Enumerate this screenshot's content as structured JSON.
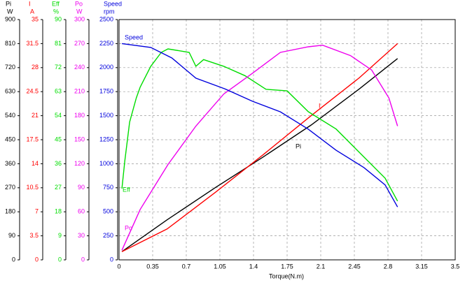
{
  "chart_data": {
    "type": "line",
    "x_label": "Torque(N.m)",
    "xlim": [
      0,
      3.5
    ],
    "xticks": [
      0,
      0.35,
      0.7,
      1.05,
      1.4,
      1.75,
      2.1,
      2.45,
      2.8,
      3.15,
      3.5
    ],
    "grid": true,
    "series": [
      {
        "name": "Pi",
        "unit": "W",
        "color": "#000000",
        "ylim": [
          0,
          900
        ],
        "yticks": [
          0,
          90,
          180,
          270,
          360,
          450,
          540,
          630,
          720,
          810,
          900
        ],
        "x": [
          0.03,
          0.5,
          1.0,
          1.5,
          2.0,
          2.5,
          2.9
        ],
        "values": [
          31,
          150,
          270,
          385,
          505,
          640,
          754
        ]
      },
      {
        "name": "I",
        "unit": "A",
        "color": "#ff0000",
        "ylim": [
          0,
          35
        ],
        "yticks": [
          0,
          3.5,
          7,
          10.5,
          14,
          17.5,
          21,
          24.5,
          28,
          31.5,
          35
        ],
        "x": [
          0.03,
          0.5,
          1.0,
          1.5,
          2.0,
          2.5,
          2.9
        ],
        "values": [
          1.2,
          4.5,
          9.8,
          15.3,
          21,
          26.5,
          31.5
        ]
      },
      {
        "name": "Eff",
        "unit": "%",
        "color": "#00dd00",
        "ylim": [
          0,
          90
        ],
        "yticks": [
          0,
          9,
          18,
          27,
          36,
          45,
          54,
          63,
          72,
          81,
          90
        ],
        "x": [
          0.03,
          0.06,
          0.11,
          0.18,
          0.22,
          0.33,
          0.44,
          0.51,
          0.73,
          0.8,
          0.88,
          1.09,
          1.31,
          1.53,
          1.75,
          1.97,
          2.26,
          2.55,
          2.77,
          2.9
        ],
        "values": [
          26.7,
          37,
          51.6,
          60.7,
          64.7,
          72.5,
          77.7,
          79,
          77.7,
          72.5,
          75,
          72.5,
          69,
          63.9,
          63.3,
          55.5,
          49,
          38.5,
          30.6,
          22
        ]
      },
      {
        "name": "Po",
        "unit": "W",
        "color": "#ee00ee",
        "ylim": [
          0,
          300
        ],
        "yticks": [
          0,
          30,
          60,
          90,
          120,
          150,
          180,
          210,
          240,
          270,
          300
        ],
        "x": [
          0.03,
          0.22,
          0.51,
          0.8,
          1.09,
          1.39,
          1.68,
          1.97,
          2.12,
          2.41,
          2.63,
          2.81,
          2.9
        ],
        "values": [
          12,
          63,
          119,
          167,
          207,
          233,
          259,
          266,
          268,
          255,
          237,
          202,
          167
        ]
      },
      {
        "name": "Speed",
        "unit": "rpm",
        "color": "#0000dd",
        "ylim": [
          0,
          2500
        ],
        "yticks": [
          0,
          250,
          500,
          750,
          1000,
          1250,
          1500,
          1750,
          2000,
          2250,
          2500
        ],
        "x": [
          0.03,
          0.33,
          0.55,
          0.8,
          1.1,
          1.39,
          1.68,
          1.97,
          2.26,
          2.55,
          2.77,
          2.9
        ],
        "values": [
          2250,
          2210,
          2100,
          1890,
          1780,
          1650,
          1540,
          1360,
          1140,
          960,
          780,
          550
        ]
      }
    ]
  }
}
